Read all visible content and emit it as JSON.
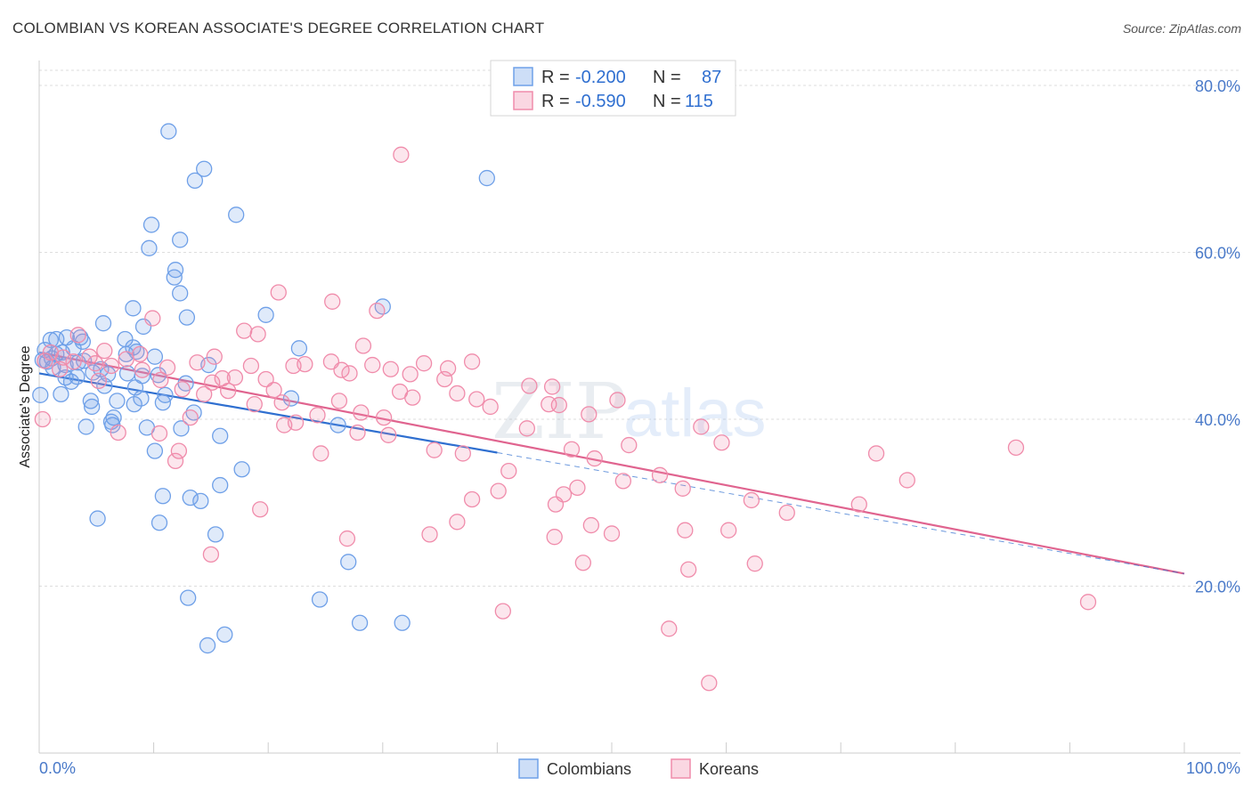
{
  "header": {
    "title": "COLOMBIAN VS KOREAN ASSOCIATE'S DEGREE CORRELATION CHART",
    "source": "Source: ZipAtlas.com"
  },
  "watermark": {
    "part1": "ZIP",
    "part2": "atlas"
  },
  "legend": {
    "rows": [
      {
        "r_label": "R =",
        "r_value": "-0.200",
        "n_label": "N =",
        "n_value": "87",
        "color": "#6fa0e8"
      },
      {
        "r_label": "R =",
        "r_value": "-0.590",
        "n_label": "N =",
        "n_value": "115",
        "color": "#f08cab"
      }
    ]
  },
  "bottom_legend": [
    {
      "label": "Colombians",
      "color": "#6fa0e8"
    },
    {
      "label": "Koreans",
      "color": "#f08cab"
    }
  ],
  "colors": {
    "blue_stroke": "#6fa0e8",
    "blue_fill": "rgba(111,160,232,0.22)",
    "blue_line": "#2f6fd0",
    "pink_stroke": "#f08cab",
    "pink_fill": "rgba(240,140,171,0.22)",
    "pink_line": "#e0648f",
    "grid": "#dddddd",
    "tick_text": "#4a7ac9"
  },
  "chart_data": {
    "type": "scatter",
    "title": "COLOMBIAN VS KOREAN ASSOCIATE'S DEGREE CORRELATION CHART",
    "xlabel": "",
    "ylabel": "Associate's Degree",
    "xlim": [
      0,
      100
    ],
    "ylim": [
      0,
      80
    ],
    "x_tick_labels": [
      "0.0%",
      "100.0%"
    ],
    "y_ticks": [
      20,
      40,
      60,
      80
    ],
    "y_tick_labels": [
      "20.0%",
      "40.0%",
      "60.0%",
      "80.0%"
    ],
    "grid": true,
    "legend_position": "top-center",
    "series": [
      {
        "name": "Colombians",
        "r": -0.2,
        "n": 87,
        "trend": {
          "x": [
            0,
            40
          ],
          "y": [
            45.5,
            36.0
          ],
          "dashed_extension": {
            "x": [
              40,
              100
            ],
            "y": [
              36.0,
              21.5
            ]
          }
        },
        "points": [
          [
            11.3,
            74.5
          ],
          [
            14.4,
            70.0
          ],
          [
            13.6,
            68.6
          ],
          [
            39.1,
            68.9
          ],
          [
            17.2,
            64.5
          ],
          [
            9.8,
            63.3
          ],
          [
            12.3,
            61.5
          ],
          [
            9.6,
            60.5
          ],
          [
            11.9,
            57.9
          ],
          [
            11.8,
            57.0
          ],
          [
            12.3,
            55.1
          ],
          [
            8.2,
            53.3
          ],
          [
            30.0,
            53.5
          ],
          [
            12.9,
            52.2
          ],
          [
            19.8,
            52.5
          ],
          [
            5.6,
            51.5
          ],
          [
            9.1,
            51.1
          ],
          [
            1.0,
            49.5
          ],
          [
            1.5,
            49.6
          ],
          [
            2.4,
            49.8
          ],
          [
            3.6,
            49.8
          ],
          [
            7.5,
            49.6
          ],
          [
            3.8,
            49.3
          ],
          [
            8.2,
            48.6
          ],
          [
            22.7,
            48.5
          ],
          [
            0.5,
            48.3
          ],
          [
            1.5,
            47.8
          ],
          [
            1.1,
            47.3
          ],
          [
            8.5,
            48.1
          ],
          [
            7.6,
            47.8
          ],
          [
            10.1,
            47.5
          ],
          [
            3.9,
            47.0
          ],
          [
            3.4,
            46.8
          ],
          [
            2.3,
            46.5
          ],
          [
            0.7,
            46.9
          ],
          [
            14.8,
            46.5
          ],
          [
            5.4,
            46.0
          ],
          [
            4.7,
            45.6
          ],
          [
            6.0,
            45.4
          ],
          [
            7.7,
            45.5
          ],
          [
            2.3,
            45.0
          ],
          [
            3.3,
            45.1
          ],
          [
            2.8,
            44.5
          ],
          [
            10.4,
            45.3
          ],
          [
            12.8,
            44.3
          ],
          [
            5.7,
            44.0
          ],
          [
            8.4,
            43.8
          ],
          [
            1.9,
            43.0
          ],
          [
            0.1,
            42.9
          ],
          [
            11.0,
            42.9
          ],
          [
            22.0,
            42.5
          ],
          [
            6.8,
            42.2
          ],
          [
            4.5,
            42.2
          ],
          [
            8.9,
            42.5
          ],
          [
            4.6,
            41.5
          ],
          [
            8.3,
            41.8
          ],
          [
            10.8,
            42.0
          ],
          [
            6.5,
            40.2
          ],
          [
            6.3,
            39.7
          ],
          [
            6.4,
            39.3
          ],
          [
            4.1,
            39.1
          ],
          [
            9.4,
            39.0
          ],
          [
            12.4,
            38.9
          ],
          [
            15.8,
            38.0
          ],
          [
            10.1,
            36.2
          ],
          [
            17.7,
            34.0
          ],
          [
            15.8,
            32.1
          ],
          [
            10.8,
            30.8
          ],
          [
            13.2,
            30.6
          ],
          [
            14.1,
            30.2
          ],
          [
            5.1,
            28.1
          ],
          [
            10.5,
            27.6
          ],
          [
            15.4,
            26.2
          ],
          [
            27.0,
            22.9
          ],
          [
            13.0,
            18.6
          ],
          [
            24.5,
            18.4
          ],
          [
            28.0,
            15.6
          ],
          [
            31.7,
            15.6
          ],
          [
            16.2,
            14.2
          ],
          [
            14.7,
            12.9
          ],
          [
            0.3,
            47.1
          ],
          [
            2.0,
            48.0
          ],
          [
            1.2,
            46.2
          ],
          [
            3.0,
            48.5
          ],
          [
            9.0,
            45.2
          ],
          [
            26.1,
            39.3
          ],
          [
            13.5,
            40.8
          ]
        ]
      },
      {
        "name": "Koreans",
        "r": -0.59,
        "n": 115,
        "trend": {
          "x": [
            0,
            100
          ],
          "y": [
            48.0,
            21.5
          ]
        },
        "points": [
          [
            31.6,
            71.7
          ],
          [
            20.9,
            55.2
          ],
          [
            25.6,
            54.1
          ],
          [
            29.5,
            53.0
          ],
          [
            9.9,
            52.1
          ],
          [
            3.4,
            50.1
          ],
          [
            17.9,
            50.6
          ],
          [
            19.1,
            50.2
          ],
          [
            28.3,
            48.8
          ],
          [
            5.7,
            48.2
          ],
          [
            4.4,
            47.5
          ],
          [
            7.6,
            47.2
          ],
          [
            8.8,
            47.8
          ],
          [
            15.3,
            47.5
          ],
          [
            25.5,
            46.9
          ],
          [
            13.8,
            46.8
          ],
          [
            1.0,
            48.0
          ],
          [
            2.1,
            47.4
          ],
          [
            3.0,
            46.9
          ],
          [
            4.9,
            46.7
          ],
          [
            6.3,
            46.4
          ],
          [
            11.2,
            46.2
          ],
          [
            9.0,
            45.9
          ],
          [
            18.5,
            46.4
          ],
          [
            26.4,
            45.9
          ],
          [
            29.1,
            46.5
          ],
          [
            30.7,
            46.0
          ],
          [
            33.6,
            46.7
          ],
          [
            35.7,
            46.1
          ],
          [
            37.8,
            46.9
          ],
          [
            23.2,
            46.6
          ],
          [
            22.2,
            46.4
          ],
          [
            27.1,
            45.5
          ],
          [
            1.8,
            46.0
          ],
          [
            0.5,
            47.0
          ],
          [
            5.2,
            44.6
          ],
          [
            10.6,
            44.7
          ],
          [
            16.0,
            44.9
          ],
          [
            19.8,
            44.8
          ],
          [
            32.4,
            45.4
          ],
          [
            35.4,
            44.8
          ],
          [
            12.5,
            43.6
          ],
          [
            14.4,
            43.0
          ],
          [
            16.5,
            43.4
          ],
          [
            21.2,
            42.0
          ],
          [
            26.2,
            42.2
          ],
          [
            31.5,
            43.3
          ],
          [
            32.6,
            42.6
          ],
          [
            36.5,
            43.1
          ],
          [
            38.2,
            42.4
          ],
          [
            24.3,
            40.5
          ],
          [
            28.1,
            40.8
          ],
          [
            30.1,
            40.2
          ],
          [
            39.4,
            41.5
          ],
          [
            44.5,
            41.8
          ],
          [
            45.4,
            41.7
          ],
          [
            48.0,
            40.6
          ],
          [
            50.5,
            42.3
          ],
          [
            21.4,
            39.3
          ],
          [
            22.4,
            39.6
          ],
          [
            27.8,
            38.4
          ],
          [
            30.5,
            38.1
          ],
          [
            42.6,
            38.9
          ],
          [
            57.8,
            39.1
          ],
          [
            13.2,
            40.2
          ],
          [
            6.9,
            38.4
          ],
          [
            10.5,
            38.3
          ],
          [
            12.2,
            36.2
          ],
          [
            24.6,
            35.9
          ],
          [
            34.5,
            36.3
          ],
          [
            37.0,
            35.9
          ],
          [
            46.5,
            36.4
          ],
          [
            51.5,
            36.9
          ],
          [
            59.6,
            37.2
          ],
          [
            73.1,
            35.9
          ],
          [
            85.3,
            36.6
          ],
          [
            11.9,
            35.0
          ],
          [
            41.0,
            33.8
          ],
          [
            48.5,
            35.3
          ],
          [
            54.2,
            33.3
          ],
          [
            51.0,
            32.6
          ],
          [
            56.2,
            31.7
          ],
          [
            75.8,
            32.7
          ],
          [
            40.1,
            31.4
          ],
          [
            47.0,
            31.8
          ],
          [
            45.8,
            31.0
          ],
          [
            37.8,
            30.4
          ],
          [
            45.1,
            29.8
          ],
          [
            62.2,
            30.3
          ],
          [
            71.6,
            29.8
          ],
          [
            65.3,
            28.8
          ],
          [
            19.3,
            29.2
          ],
          [
            36.5,
            27.7
          ],
          [
            48.2,
            27.3
          ],
          [
            56.4,
            26.7
          ],
          [
            60.2,
            26.7
          ],
          [
            50.0,
            26.3
          ],
          [
            34.1,
            26.2
          ],
          [
            26.9,
            25.7
          ],
          [
            45.0,
            25.9
          ],
          [
            56.7,
            22.0
          ],
          [
            62.5,
            22.7
          ],
          [
            15.0,
            23.8
          ],
          [
            47.5,
            22.8
          ],
          [
            40.5,
            17.0
          ],
          [
            91.6,
            18.1
          ],
          [
            55.0,
            14.9
          ],
          [
            58.5,
            8.4
          ],
          [
            20.5,
            43.5
          ],
          [
            15.1,
            44.4
          ],
          [
            17.1,
            45.0
          ],
          [
            18.8,
            41.8
          ],
          [
            42.8,
            44.0
          ],
          [
            44.8,
            43.9
          ],
          [
            0.3,
            40.0
          ]
        ]
      }
    ]
  }
}
